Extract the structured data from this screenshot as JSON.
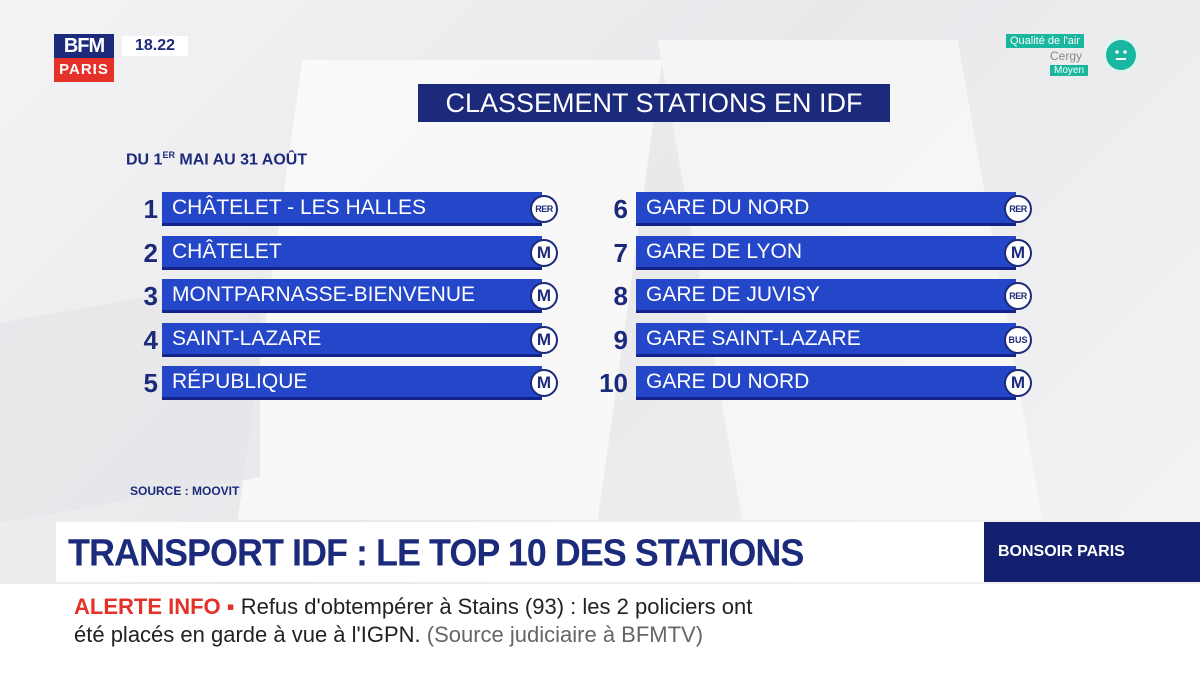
{
  "logo": {
    "brand": "BFM",
    "city": "PARIS"
  },
  "clock": "18.22",
  "air_quality": {
    "label": "Qualité de l'air",
    "city": "Cergy",
    "level": "Moyen",
    "icon": "neutral-face-icon",
    "color": "#19b6a0"
  },
  "chart": {
    "title": "CLASSEMENT STATIONS EN IDF",
    "period_prefix": "DU 1",
    "period_sup": "ER",
    "period_suffix": " MAI AU 31 AOÛT",
    "source": "SOURCE : MOOVIT",
    "left_column": [
      {
        "rank": "1",
        "name": "CHÂTELET - LES HALLES",
        "network": "RER"
      },
      {
        "rank": "2",
        "name": "CHÂTELET",
        "network": "M"
      },
      {
        "rank": "3",
        "name": "MONTPARNASSE-BIENVENUE",
        "network": "M"
      },
      {
        "rank": "4",
        "name": "SAINT-LAZARE",
        "network": "M"
      },
      {
        "rank": "5",
        "name": "RÉPUBLIQUE",
        "network": "M"
      }
    ],
    "right_column": [
      {
        "rank": "6",
        "name": "GARE DU NORD",
        "network": "RER"
      },
      {
        "rank": "7",
        "name": "GARE DE LYON",
        "network": "M"
      },
      {
        "rank": "8",
        "name": "GARE DE JUVISY",
        "network": "RER"
      },
      {
        "rank": "9",
        "name": "GARE SAINT-LAZARE",
        "network": "BUS"
      },
      {
        "rank": "10",
        "name": "GARE DU NORD",
        "network": "M"
      }
    ]
  },
  "banner": {
    "headline": "TRANSPORT IDF : LE TOP 10 DES STATIONS",
    "program": "BONSOIR PARIS"
  },
  "ticker": {
    "alert": "ALERTE INFO ▪",
    "line1": " Refus d'obtempérer à Stains (93) : les 2 policiers ont",
    "line2": "été placés en garde à vue à l'IGPN.",
    "source": " (Source judiciaire à BFMTV)"
  },
  "colors": {
    "navy": "#1b2a7a",
    "bar": "#2446c8",
    "red": "#e4322b"
  }
}
